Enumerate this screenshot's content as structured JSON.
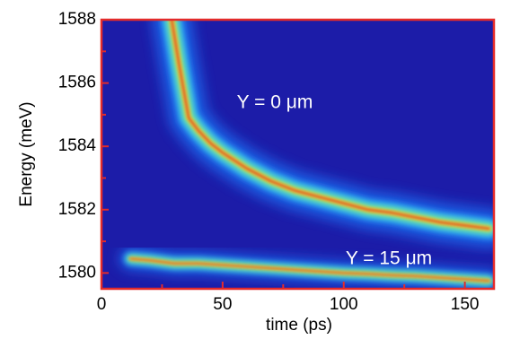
{
  "chart_data": {
    "type": "line",
    "x_label": "time (ps)",
    "y_label": "Energy (meV)",
    "xlim": [
      0,
      162
    ],
    "ylim": [
      1579.5,
      1588
    ],
    "xticks": [
      0,
      50,
      100,
      150
    ],
    "yticks": [
      1580,
      1582,
      1584,
      1586,
      1588
    ],
    "xminorticks": [
      25,
      75,
      125
    ],
    "yminorticks": [
      1581,
      1583,
      1585,
      1587
    ],
    "background": "#1c1ca8",
    "frame_color": "#e32b2b",
    "series": [
      {
        "name": "Y = 0 μm",
        "color": "#d81818",
        "x": [
          29,
          32,
          36,
          40,
          45,
          50,
          60,
          70,
          80,
          90,
          100,
          110,
          120,
          130,
          140,
          150,
          160
        ],
        "values": [
          1588,
          1586.6,
          1584.9,
          1584.5,
          1584.1,
          1583.8,
          1583.3,
          1582.9,
          1582.6,
          1582.4,
          1582.2,
          1582.0,
          1581.9,
          1581.75,
          1581.6,
          1581.5,
          1581.4
        ]
      },
      {
        "name": "Y = 15 μm",
        "color": "#d81818",
        "x": [
          12,
          20,
          30,
          40,
          50,
          60,
          70,
          80,
          90,
          100,
          110,
          120,
          130,
          140,
          150,
          160
        ],
        "values": [
          1580.45,
          1580.4,
          1580.3,
          1580.3,
          1580.25,
          1580.2,
          1580.15,
          1580.1,
          1580.05,
          1580.0,
          1579.97,
          1579.93,
          1579.9,
          1579.85,
          1579.8,
          1579.75
        ]
      }
    ]
  }
}
